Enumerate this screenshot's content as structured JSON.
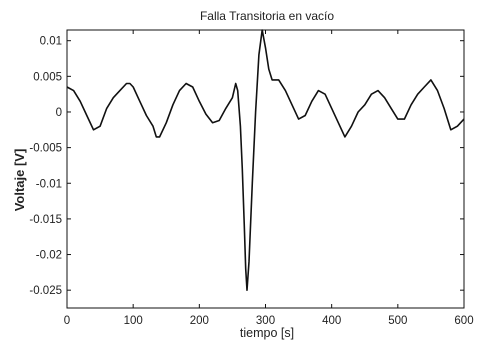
{
  "chart_data": {
    "type": "line",
    "title": "Falla Transitoria en vacío",
    "xlabel": "tiempo [s]",
    "ylabel": "Voltaje [V]",
    "xlim": [
      0,
      600
    ],
    "ylim": [
      -0.0275,
      0.0115
    ],
    "xticks": [
      0,
      100,
      200,
      300,
      400,
      500,
      600
    ],
    "xtick_labels": [
      "0",
      "100",
      "200",
      "300",
      "400",
      "500",
      "600"
    ],
    "yticks": [
      0.01,
      0.005,
      0,
      -0.005,
      -0.01,
      -0.015,
      -0.02,
      -0.025
    ],
    "ytick_labels": [
      "0.01",
      "0.005",
      "0",
      "-0.005",
      "-0.01",
      "-0.015",
      "-0.02",
      "-0.025"
    ],
    "grid": false,
    "legend": "none",
    "line_color": "#111111",
    "series": [
      {
        "x": [
          0,
          10,
          20,
          30,
          40,
          50,
          60,
          70,
          80,
          90,
          95,
          100,
          110,
          120,
          130,
          135,
          140,
          150,
          160,
          170,
          180,
          190,
          200,
          210,
          220,
          230,
          240,
          250,
          255,
          258,
          262,
          265,
          268,
          270,
          272,
          275,
          280,
          285,
          290,
          295,
          300,
          305,
          310,
          320,
          330,
          340,
          350,
          360,
          370,
          380,
          390,
          400,
          410,
          420,
          430,
          440,
          450,
          460,
          470,
          480,
          490,
          500,
          510,
          520,
          530,
          540,
          550,
          560,
          570,
          580,
          590,
          600
        ],
        "y": [
          0.0035,
          0.003,
          0.0015,
          -0.0005,
          -0.0025,
          -0.002,
          0.0005,
          0.002,
          0.003,
          0.004,
          0.004,
          0.0035,
          0.0015,
          -0.0005,
          -0.002,
          -0.0035,
          -0.0035,
          -0.0015,
          0.001,
          0.003,
          0.004,
          0.0035,
          0.0015,
          -0.0003,
          -0.0015,
          -0.0012,
          0.0005,
          0.002,
          0.004,
          0.003,
          -0.002,
          -0.008,
          -0.016,
          -0.022,
          -0.025,
          -0.021,
          -0.01,
          0.0,
          0.008,
          0.0115,
          0.009,
          0.006,
          0.0045,
          0.0045,
          0.003,
          0.001,
          -0.001,
          -0.0005,
          0.0015,
          0.003,
          0.0025,
          0.0005,
          -0.0015,
          -0.0035,
          -0.002,
          0.0,
          0.001,
          0.0025,
          0.003,
          0.002,
          0.0005,
          -0.001,
          -0.001,
          0.001,
          0.0025,
          0.0035,
          0.0045,
          0.003,
          0.0005,
          -0.0025,
          -0.002,
          -0.001
        ]
      }
    ]
  }
}
